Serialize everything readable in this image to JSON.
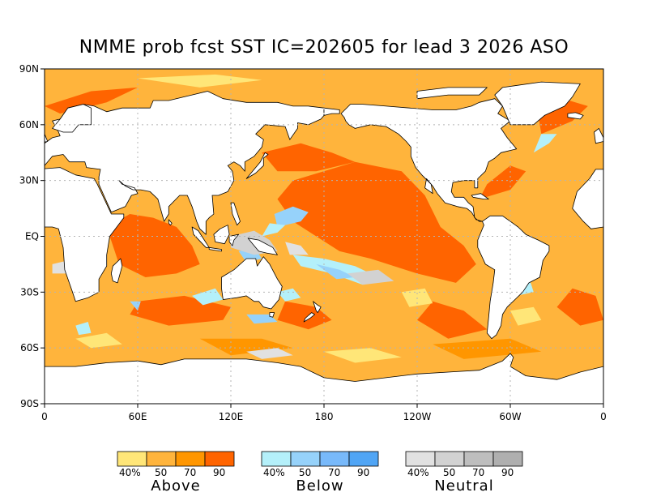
{
  "title": "NMME prob fcst SST IC=202605 for lead 3 2026 ASO",
  "map": {
    "projection": "equirectangular",
    "lon_range": [
      0,
      360
    ],
    "lat_range": [
      -90,
      90
    ],
    "grid": true,
    "lat_ticks": [
      {
        "lat": 90,
        "label": "90N"
      },
      {
        "lat": 60,
        "label": "60N"
      },
      {
        "lat": 30,
        "label": "30N"
      },
      {
        "lat": 0,
        "label": "EQ"
      },
      {
        "lat": -30,
        "label": "30S"
      },
      {
        "lat": -60,
        "label": "60S"
      },
      {
        "lat": -90,
        "label": "90S"
      }
    ],
    "lon_ticks": [
      {
        "lon": 0,
        "label": "0"
      },
      {
        "lon": 60,
        "label": "60E"
      },
      {
        "lon": 120,
        "label": "120E"
      },
      {
        "lon": 180,
        "label": "180"
      },
      {
        "lon": 240,
        "label": "120W"
      },
      {
        "lon": 300,
        "label": "60W"
      },
      {
        "lon": 360,
        "label": "0"
      }
    ],
    "colors": {
      "ocean_base": "#ffb43c",
      "land": "#ffffff",
      "coast": "#000000",
      "grid": "#b4b4b4"
    },
    "region_names": [
      "Africa",
      "Eurasia",
      "North America",
      "South America",
      "Australia",
      "Antarctica",
      "Greenland"
    ],
    "prob_regions_desc": [
      "central-east Pacific above 90%",
      "Indian Ocean above 70-90%",
      "western tropical Pacific below/neutral"
    ]
  },
  "legend": {
    "groups": [
      {
        "name": "Above",
        "labels": [
          "40%",
          "50",
          "70",
          "90"
        ],
        "colors": [
          "#ffe678",
          "#ffb43c",
          "#ff9600",
          "#ff6400"
        ]
      },
      {
        "name": "Below",
        "labels": [
          "40%",
          "50",
          "70",
          "90"
        ],
        "colors": [
          "#b4f0fa",
          "#96d2fa",
          "#78b9fa",
          "#50a5f5"
        ]
      },
      {
        "name": "Neutral",
        "labels": [
          "40%",
          "50",
          "70",
          "90"
        ],
        "colors": [
          "#e1e1e1",
          "#d2d2d2",
          "#bebebe",
          "#afafaf"
        ]
      }
    ]
  }
}
